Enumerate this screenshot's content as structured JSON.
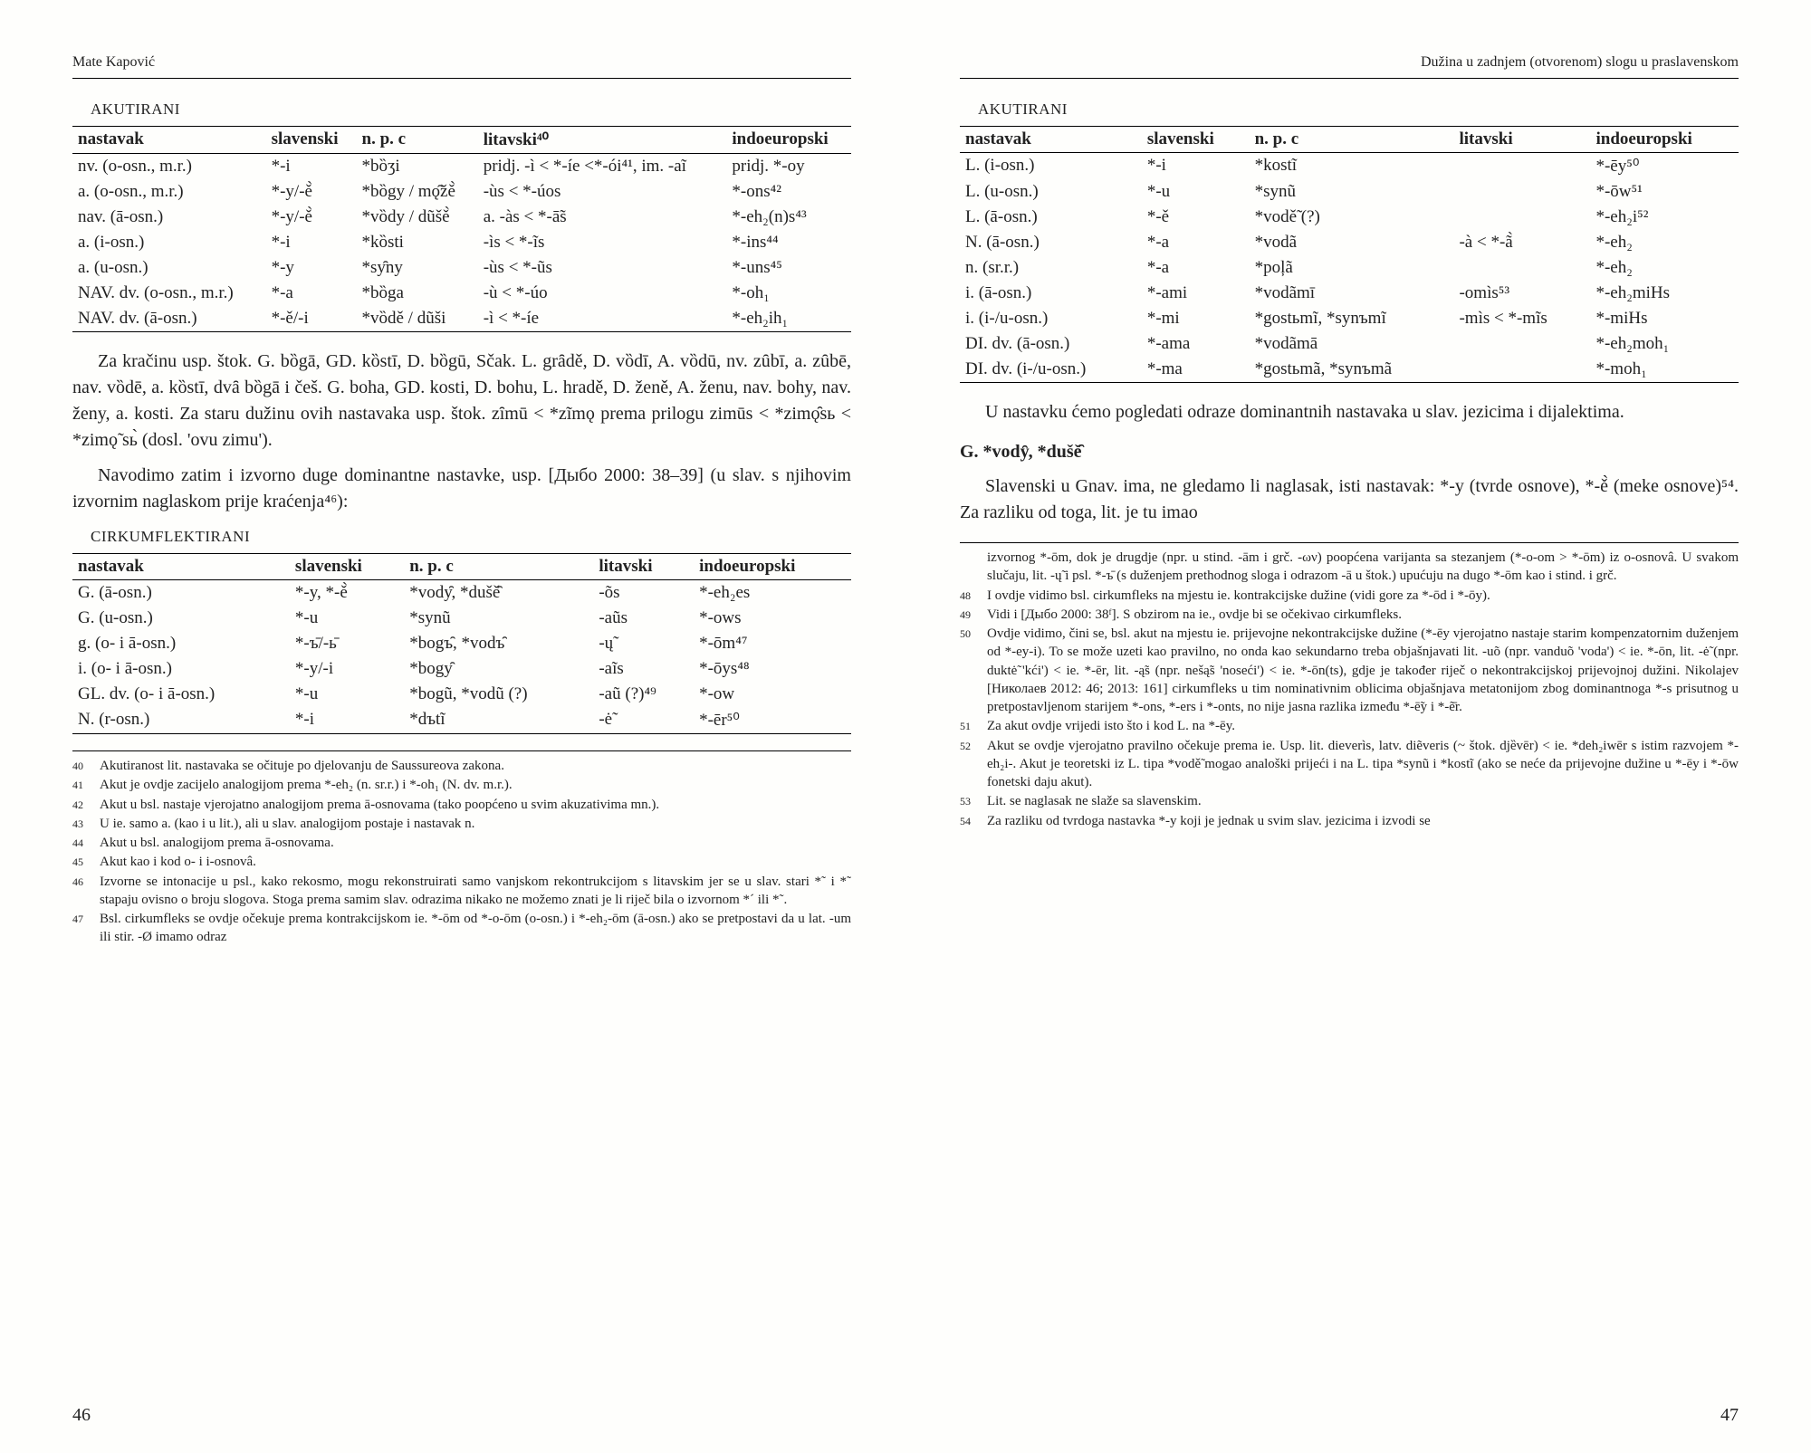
{
  "header": {
    "author": "Mate Kapović",
    "title_right": "Dužina u zadnjem (otvorenom) slogu u praslavenskom"
  },
  "labels": {
    "akutirani": "AKUTIRANI",
    "cirkumflektirani": "CIRKUMFLEKTIRANI"
  },
  "table1": {
    "headers": [
      "nastavak",
      "slavenski",
      "n. p. c",
      "litavski⁴⁰",
      "indoeuropski"
    ],
    "rows": [
      [
        "nv. (o-osn., m.r.)",
        "*-i",
        "*bȍʒi",
        "pridj. -ì < *-íe <*-ói⁴¹, im. -aĩ",
        "pridj. *-oy"
      ],
      [
        "a. (o-osn., m.r.)",
        "*-y/-ě̀",
        "*bȍgy / mǫ̑žě̀",
        "-ùs < *-úos",
        "*-ons⁴²"
      ],
      [
        "nav. (ā-osn.)",
        "*-y/-ě̀",
        "*vȍdy / dũšě̀",
        "a. -às < *-ā̃s",
        "*-eh₂(n)s⁴³"
      ],
      [
        "a. (i-osn.)",
        "*-i",
        "*kȍsti",
        "-ìs < *-ĩs",
        "*-ins⁴⁴"
      ],
      [
        "a. (u-osn.)",
        "*-y",
        "*sy̑ny",
        "-ùs < *-ũs",
        "*-uns⁴⁵"
      ],
      [
        "NAV. dv. (o-osn., m.r.)",
        "*-a",
        "*bȍga",
        "-ù < *-úo",
        "*-oh₁"
      ],
      [
        "NAV. dv. (ā-osn.)",
        "*-ě/-i",
        "*vȍdě / dũši",
        "-ì < *-íe",
        "*-eh₂ih₁"
      ]
    ]
  },
  "para1": "Za kračinu usp. štok. G. bȍgā, GD. kȍstī, D. bȍgū, Sčak. L. grȃdě, D. vȍdī, A. vȍdū, nv. zȗbī, a. zȗbē, nav. vȍdē, a. kȍstī, dvȃ bȍgā i češ. G. boha, GD. kosti, D. bohu, L. hradě, D. ženě, A. ženu, nav. bohy, nav. ženy, a. kosti. Za staru dužinu ovih nastavaka usp. štok. zȋmū < *zĩmǫ prema prilogu zimūs < *zimǫ̑sь < *zimǫ̃ sь̀ (dosl. 'ovu zimu').",
  "para2": "Navodimo zatim i izvorno duge dominantne nastavke, usp. [Дыбо 2000: 38–39] (u slav. s njihovim izvornim naglaskom prije kraćenja⁴⁶):",
  "table2": {
    "headers": [
      "nastavak",
      "slavenski",
      "n. p. c",
      "litavski",
      "indoeuropski"
    ],
    "rows": [
      [
        "G. (ā-osn.)",
        "*-y, *-ě̀",
        "*vody̑, *dušě̑",
        "-õs",
        "*-eh₂es"
      ],
      [
        "G. (u-osn.)",
        "*-u",
        "*synũ",
        "-aũs",
        "*-ows"
      ],
      [
        "g. (o- i ā-osn.)",
        "*-ъ̄/-ь̄",
        "*bogъ̑, *vodъ̑",
        "-ų̃",
        "*-ōm⁴⁷"
      ],
      [
        "i. (o- i ā-osn.)",
        "*-y/-i",
        "*bogy̑",
        "-aĩs",
        "*-ōys⁴⁸"
      ],
      [
        "GL. dv. (o- i ā-osn.)",
        "*-u",
        "*bogũ, *vodũ (?)",
        "-aũ (?)⁴⁹",
        "*-ow"
      ],
      [
        "N. (r-osn.)",
        "*-i",
        "*dъtĩ",
        "-ė̃",
        "*-ēr⁵⁰"
      ]
    ]
  },
  "footnotes_left": [
    {
      "n": "40",
      "t": "Akutiranost lit. nastavaka se očituje po djelovanju de Saussureova zakona."
    },
    {
      "n": "41",
      "t": "Akut je ovdje zacijelo analogijom prema *-eh₂ (n. sr.r.) i *-oh₁ (N. dv. m.r.)."
    },
    {
      "n": "42",
      "t": "Akut u bsl. nastaje vjerojatno analogijom prema ā-osnovama (tako poopćeno u svim akuzativima mn.)."
    },
    {
      "n": "43",
      "t": "U ie. samo a. (kao i u lit.), ali u slav. analogijom postaje i nastavak n."
    },
    {
      "n": "44",
      "t": "Akut u bsl. analogijom prema ā-osnovama."
    },
    {
      "n": "45",
      "t": "Akut kao i kod o- i i-osnovâ."
    },
    {
      "n": "46",
      "t": "Izvorne se intonacije u psl., kako rekosmo, mogu rekonstruirati samo vanjskom rekontrukcijom s litavskim jer se u slav. stari *˜ i *˜ stapaju ovisno o broju slogova. Stoga prema samim slav. odrazima nikako ne možemo znati je li riječ bila o izvornom *´ ili *˜."
    },
    {
      "n": "47",
      "t": "Bsl. cirkumfleks se ovdje očekuje prema kontrakcijskom ie. *-ōm od *-o-ōm (o-osn.) i *-eh₂-ōm (ā-osn.) ako se pretpostavi da u lat. -um ili stir. -Ø imamo odraz"
    }
  ],
  "pagenum_left": "46",
  "table3": {
    "headers": [
      "nastavak",
      "slavenski",
      "n. p. c",
      "litavski",
      "indoeuropski"
    ],
    "rows": [
      [
        "L. (i-osn.)",
        "*-i",
        "*kostĩ",
        "",
        "*-ēy⁵⁰"
      ],
      [
        "L. (u-osn.)",
        "*-u",
        "*synũ",
        "",
        "*-ōw⁵¹"
      ],
      [
        "L. (ā-osn.)",
        "*-ě",
        "*vodě̃ (?)",
        "",
        "*-eh₂i⁵²"
      ],
      [
        "N. (ā-osn.)",
        "*-a",
        "*vodã",
        "-à < *-ã̀",
        "*-eh₂"
      ],
      [
        "n. (sr.r.)",
        "*-a",
        "*poļã",
        "",
        "*-eh₂"
      ],
      [
        "i. (ā-osn.)",
        "*-ami",
        "*vodãmī",
        "-omìs⁵³",
        "*-eh₂miHs"
      ],
      [
        "i. (i-/u-osn.)",
        "*-mi",
        "*gostьmĩ, *synъmĩ",
        "-mìs < *-mĩs",
        "*-miHs"
      ],
      [
        "DI. dv. (ā-osn.)",
        "*-ama",
        "*vodãmā",
        "",
        "*-eh₂moh₁"
      ],
      [
        "DI. dv. (i-/u-osn.)",
        "*-ma",
        "*gostьmã, *synъmã",
        "",
        "*-moh₁"
      ]
    ]
  },
  "para3": "U nastavku ćemo pogledati odraze dominantnih nastavaka u slav. jezicima i dijalektima.",
  "heading_g": "G. *vody̑, *dušě̑",
  "para4": "Slavenski u Gnav. ima, ne gledamo li naglasak, isti nastavak: *-y (tvrde osnove), *-ě̀ (meke osnove)⁵⁴. Za razliku od toga, lit. je tu imao",
  "footnotes_right": [
    {
      "n": "",
      "t": "izvornog *-ōm, dok je drugdje (npr. u stind. -ām i grč. -ων) poopćena varijanta sa stezanjem (*-o-om > *-ōm) iz o-osnovâ. U svakom slučaju, lit. -ų̃ i psl. *-ъ̄ (s duženjem prethodnog sloga i odrazom -ā u štok.) upućuju na dugo *-ōm kao i stind. i grč."
    },
    {
      "n": "48",
      "t": "I ovdje vidimo bsl. cirkumfleks na mjestu ie. kontrakcijske dužine (vidi gore za *-ōd i *-ōy)."
    },
    {
      "n": "49",
      "t": "Vidi i [Дыбо 2000: 38ᶠ]. S obzirom na ie., ovdje bi se očekivao cirkumfleks."
    },
    {
      "n": "50",
      "t": "Ovdje vidimo, čini se, bsl. akut na mjestu ie. prijevojne nekontrakcijske dužine (*-ēy vjerojatno nastaje starim kompenzatornim duženjem od *-ey-i). To se može uzeti kao pravilno, no onda kao sekundarno treba objašnjavati lit. -uõ (npr. vanduõ 'voda') < ie. *-ōn, lit. -ė̃ (npr. duktė̃ 'kći') < ie. *-ēr, lit. -ą̃s (npr. nešą̃s 'noseći') < ie. *-ōn(ts), gdje je također riječ o nekontrakcijskoj prijevojnoj dužini. Nikolajev [Николаев 2012: 46; 2013: 161] cirkumfleks u tim nominativnim oblicima objašnjava metatonijom zbog dominantnoga *-s prisutnog u pretpostavljenom starijem *-ons, *-ers i *-onts, no nije jasna razlika između *-ē̃y i *-ẽ̄r."
    },
    {
      "n": "51",
      "t": "Za akut ovdje vrijedi isto što i kod L. na *-ēy."
    },
    {
      "n": "52",
      "t": "Akut se ovdje vjerojatno pravilno očekuje prema ie. Usp. lit. dieverìs, latv. diẽveris (~ štok. djȅvēr) < ie. *deh₂iwēr s istim razvojem *-eh₂i-. Akut je teoretski iz L. tipa *vodě̃ mogao analoški prijeći i na L. tipa *synũ i *kostĩ (ako se neće da prijevojne dužine u *-ēy i *-ōw fonetski daju akut)."
    },
    {
      "n": "53",
      "t": "Lit. se naglasak ne slaže sa slavenskim."
    },
    {
      "n": "54",
      "t": "Za razliku od tvrdoga nastavka *-y koji je jednak u svim slav. jezicima i izvodi se"
    }
  ],
  "pagenum_right": "47",
  "colors": {
    "bg": "#fefefc",
    "text": "#222222",
    "rule": "#000000"
  }
}
